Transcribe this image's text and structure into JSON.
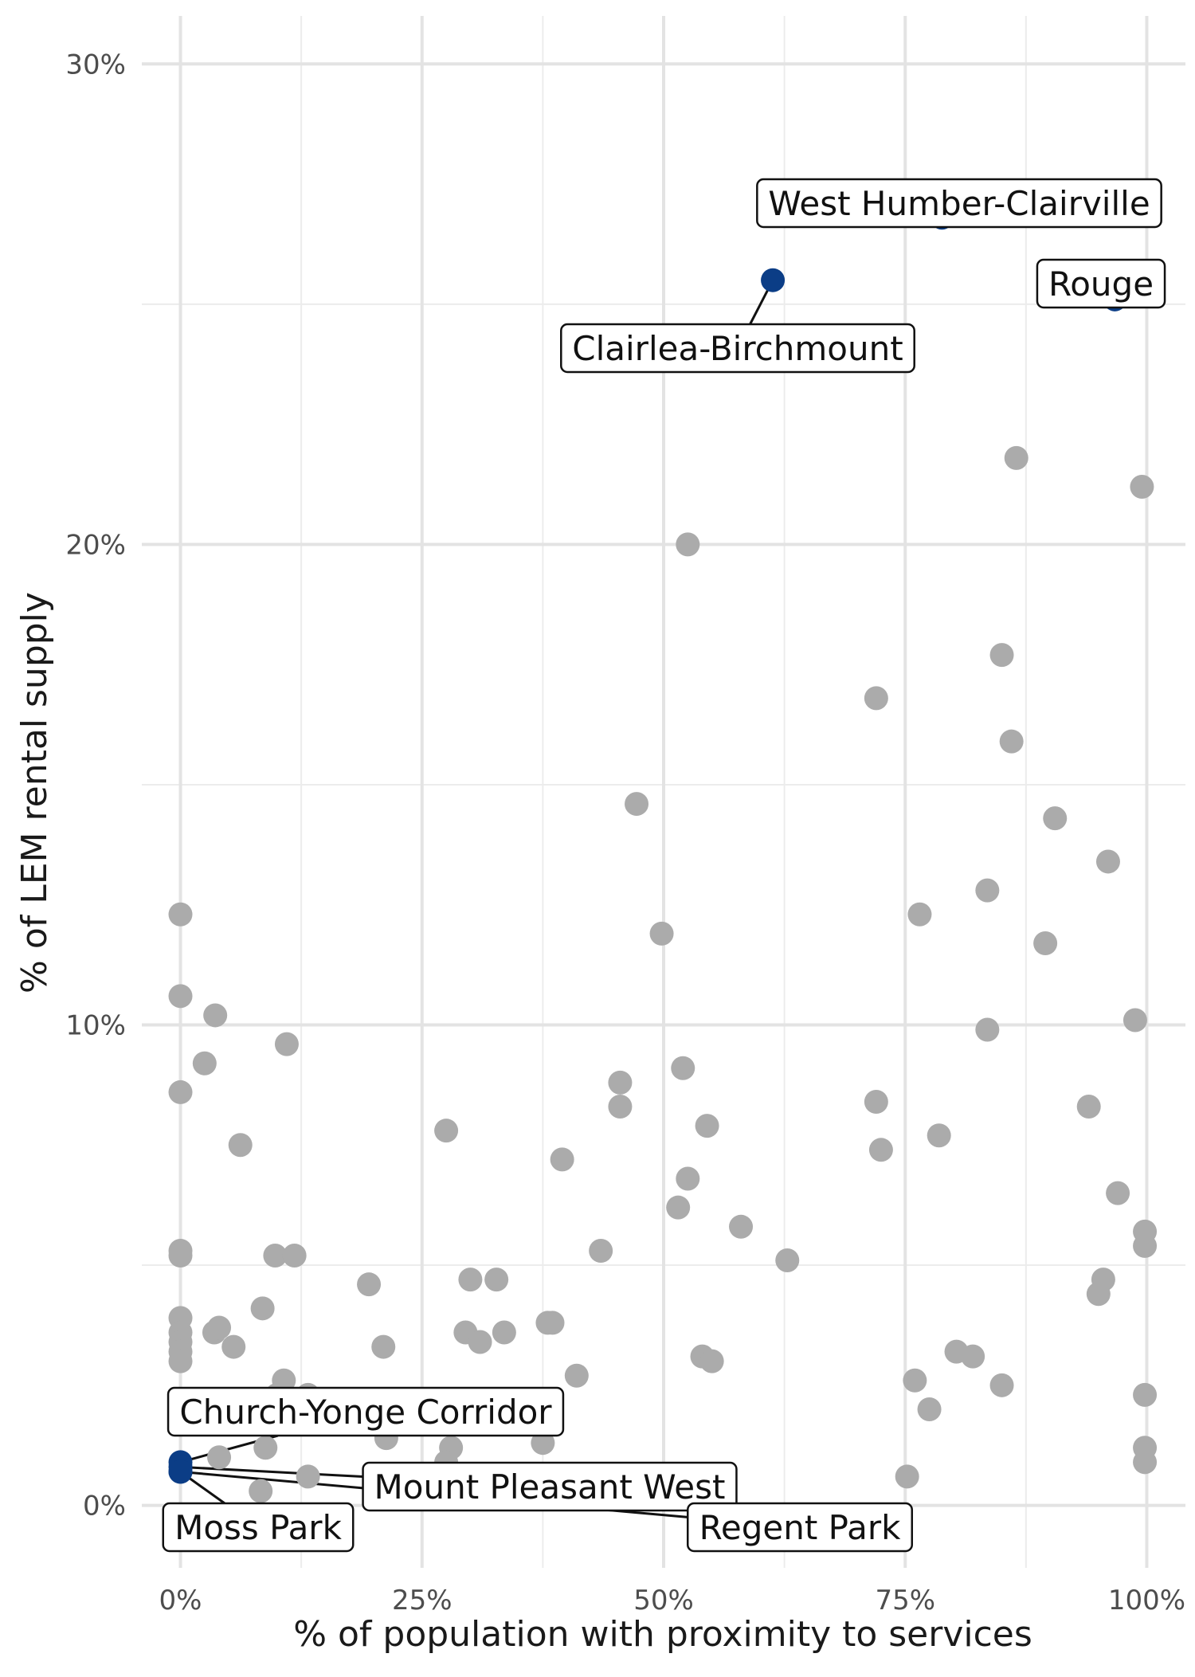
{
  "chart_data": {
    "type": "scatter",
    "title": "",
    "xlabel": "% of population with proximity to services",
    "ylabel": "% of LEM rental supply",
    "xlim": [
      -0.04,
      1.04
    ],
    "ylim": [
      -0.013,
      0.31
    ],
    "x_ticks": [
      0,
      0.25,
      0.5,
      0.75,
      1.0
    ],
    "x_tick_labels": [
      "0%",
      "25%",
      "50%",
      "75%",
      "100%"
    ],
    "y_ticks": [
      0,
      0.1,
      0.2,
      0.3
    ],
    "y_tick_labels": [
      "0%",
      "10%",
      "20%",
      "30%"
    ],
    "grid": true,
    "legend": "none",
    "colors": {
      "background": "#d8e3ef",
      "highlight": "#0b3d86"
    },
    "series": [
      {
        "values": [
          [
            0.525,
            0.2
          ],
          [
            0.865,
            0.218
          ],
          [
            0.995,
            0.212
          ],
          [
            0.85,
            0.177
          ],
          [
            0.72,
            0.168
          ],
          [
            0.86,
            0.159
          ],
          [
            0.472,
            0.146
          ],
          [
            0.905,
            0.143
          ],
          [
            0.96,
            0.134
          ],
          [
            0.835,
            0.128
          ],
          [
            0.0,
            0.123
          ],
          [
            0.765,
            0.123
          ],
          [
            0.498,
            0.119
          ],
          [
            0.895,
            0.117
          ],
          [
            0.0,
            0.106
          ],
          [
            0.036,
            0.102
          ],
          [
            0.988,
            0.101
          ],
          [
            0.835,
            0.099
          ],
          [
            0.11,
            0.096
          ],
          [
            0.025,
            0.092
          ],
          [
            0.455,
            0.088
          ],
          [
            0.52,
            0.091
          ],
          [
            0.0,
            0.086
          ],
          [
            0.455,
            0.083
          ],
          [
            0.72,
            0.084
          ],
          [
            0.94,
            0.083
          ],
          [
            0.545,
            0.079
          ],
          [
            0.275,
            0.078
          ],
          [
            0.785,
            0.077
          ],
          [
            0.062,
            0.075
          ],
          [
            0.725,
            0.074
          ],
          [
            0.395,
            0.072
          ],
          [
            0.525,
            0.068
          ],
          [
            0.97,
            0.065
          ],
          [
            0.515,
            0.062
          ],
          [
            0.58,
            0.058
          ],
          [
            0.998,
            0.057
          ],
          [
            0.0,
            0.053
          ],
          [
            0.0,
            0.052
          ],
          [
            0.098,
            0.052
          ],
          [
            0.118,
            0.052
          ],
          [
            0.435,
            0.053
          ],
          [
            0.628,
            0.051
          ],
          [
            0.998,
            0.054
          ],
          [
            0.195,
            0.046
          ],
          [
            0.3,
            0.047
          ],
          [
            0.327,
            0.047
          ],
          [
            0.955,
            0.047
          ],
          [
            0.95,
            0.044
          ],
          [
            0.085,
            0.041
          ],
          [
            0.0,
            0.039
          ],
          [
            0.38,
            0.038
          ],
          [
            0.385,
            0.038
          ],
          [
            0.0,
            0.036
          ],
          [
            0.035,
            0.036
          ],
          [
            0.04,
            0.037
          ],
          [
            0.295,
            0.036
          ],
          [
            0.335,
            0.036
          ],
          [
            0.0,
            0.034
          ],
          [
            0.31,
            0.034
          ],
          [
            0.055,
            0.033
          ],
          [
            0.21,
            0.033
          ],
          [
            0.0,
            0.032
          ],
          [
            0.54,
            0.031
          ],
          [
            0.55,
            0.03
          ],
          [
            0.803,
            0.032
          ],
          [
            0.82,
            0.031
          ],
          [
            0.0,
            0.03
          ],
          [
            0.41,
            0.027
          ],
          [
            0.107,
            0.026
          ],
          [
            0.76,
            0.026
          ],
          [
            0.85,
            0.025
          ],
          [
            0.998,
            0.023
          ],
          [
            0.1,
            0.023
          ],
          [
            0.132,
            0.023
          ],
          [
            0.775,
            0.02
          ],
          [
            0.998,
            0.012
          ],
          [
            0.998,
            0.009
          ],
          [
            0.088,
            0.012
          ],
          [
            0.213,
            0.014
          ],
          [
            0.28,
            0.012
          ],
          [
            0.04,
            0.01
          ],
          [
            0.275,
            0.009
          ],
          [
            0.132,
            0.006
          ],
          [
            0.752,
            0.006
          ],
          [
            0.083,
            0.003
          ],
          [
            0.375,
            0.013
          ]
        ]
      },
      {
        "values": [
          [
            0.788,
            0.268
          ],
          [
            0.613,
            0.255
          ],
          [
            0.967,
            0.251
          ],
          [
            0.0,
            0.009
          ],
          [
            0.0,
            0.008
          ],
          [
            0.0,
            0.007
          ],
          [
            0.0,
            0.007
          ]
        ]
      }
    ],
    "annotations": [
      {
        "text": "West Humber-Clairville",
        "x": 0.788,
        "y": 0.268
      },
      {
        "text": "Rouge",
        "x": 0.967,
        "y": 0.251
      },
      {
        "text": "Clairlea-Birchmount",
        "x": 0.613,
        "y": 0.255
      },
      {
        "text": "Church-Yonge Corridor",
        "x": 0.0,
        "y": 0.009
      },
      {
        "text": "Mount Pleasant West",
        "x": 0.0,
        "y": 0.008
      },
      {
        "text": "Moss Park",
        "x": 0.0,
        "y": 0.007
      },
      {
        "text": "Regent Park",
        "x": 0.0,
        "y": 0.007
      }
    ]
  }
}
